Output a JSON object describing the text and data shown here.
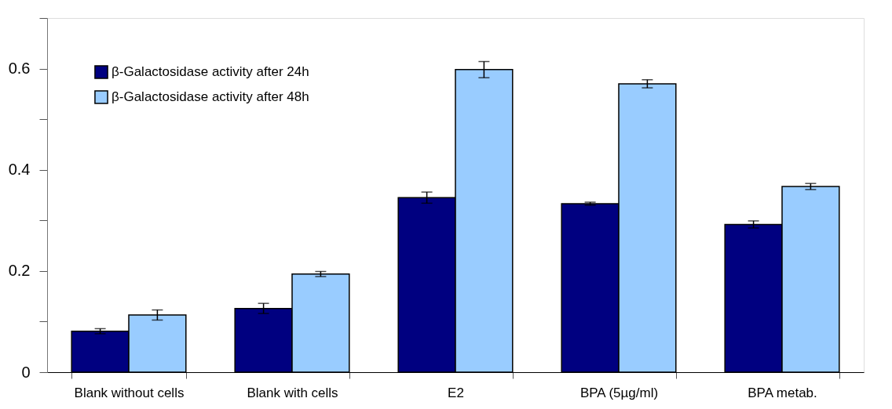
{
  "chart_data": {
    "type": "bar",
    "categories": [
      "Blank without cells",
      "Blank with cells",
      "E2",
      "BPA (5µg/ml)",
      "BPA metab."
    ],
    "series": [
      {
        "name": "β-Galactosidase activity after 24h",
        "color": "#000080",
        "values": [
          0.081,
          0.126,
          0.345,
          0.333,
          0.292
        ],
        "errors": [
          0.005,
          0.01,
          0.011,
          0.003,
          0.007
        ]
      },
      {
        "name": "β-Galactosidase activity after 48h",
        "color": "#99ccff",
        "values": [
          0.113,
          0.194,
          0.598,
          0.57,
          0.367
        ],
        "errors": [
          0.01,
          0.005,
          0.016,
          0.008,
          0.006
        ]
      }
    ],
    "ylim": [
      0,
      0.7
    ],
    "yticks": [
      0,
      {
        "value": 0.1,
        "label": null
      },
      {
        "value": 0.2,
        "label": "0.2"
      },
      {
        "value": 0.3,
        "label": null
      },
      {
        "value": 0.4,
        "label": "0.4"
      },
      {
        "value": 0.5,
        "label": null
      },
      {
        "value": 0.6,
        "label": "0.6"
      },
      {
        "value": 0.7,
        "label": null
      }
    ],
    "grid": false,
    "legend": "top left"
  }
}
